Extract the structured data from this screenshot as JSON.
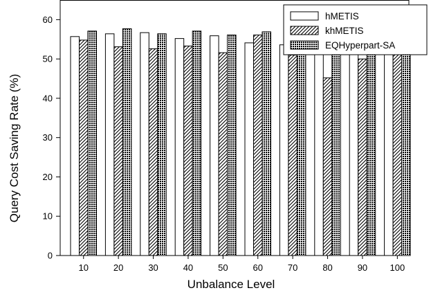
{
  "chart_data": {
    "type": "bar",
    "categories": [
      "10",
      "20",
      "30",
      "40",
      "50",
      "60",
      "70",
      "80",
      "90",
      "100"
    ],
    "series": [
      {
        "name": "hMETIS",
        "values": [
          55.7,
          56.4,
          56.7,
          55.2,
          55.9,
          54.1,
          53.6,
          53.2,
          55.4,
          51.4
        ]
      },
      {
        "name": "khMETIS",
        "values": [
          54.8,
          53.1,
          52.6,
          53.3,
          51.6,
          56.1,
          51.0,
          45.2,
          50.0,
          55.4
        ]
      },
      {
        "name": "EQHyperpart-SA",
        "values": [
          57.1,
          57.7,
          56.4,
          57.1,
          56.1,
          56.9,
          56.1,
          57.9,
          56.8,
          54.2
        ]
      }
    ],
    "xlabel": "Unbalance Level",
    "ylabel": "Query  Cost  Saving  Rate (%)",
    "ylim": [
      0,
      65
    ],
    "yticks": [
      0,
      10,
      20,
      30,
      40,
      50,
      60
    ],
    "grid": false,
    "legend_position": "top-right",
    "series_fills": [
      "white",
      "diagonal-hatch",
      "crosshatch"
    ]
  }
}
